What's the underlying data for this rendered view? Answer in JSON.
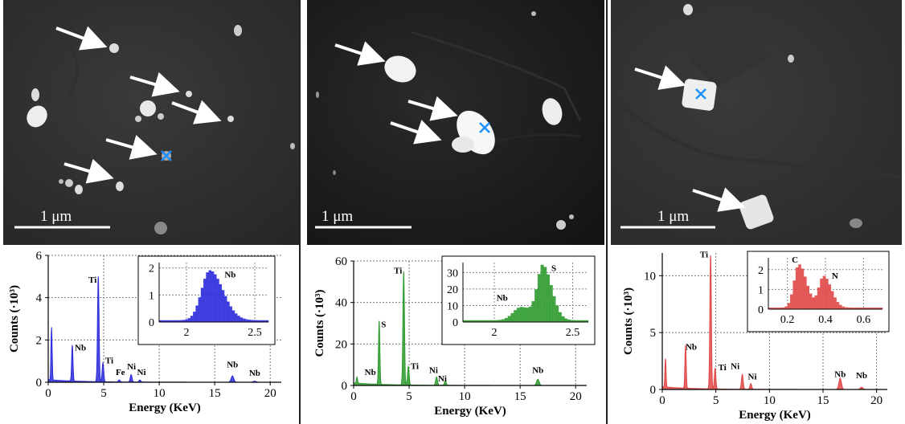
{
  "figure": {
    "scale_bar_label": "1 μm",
    "panels": [
      {
        "id": "left",
        "chart_data": {
          "type": "line",
          "title": "",
          "xlabel": "Energy (KeV)",
          "ylabel": "Counts (·10³)",
          "xlim": [
            0,
            21
          ],
          "ylim": [
            0,
            6
          ],
          "x_ticks": [
            0,
            5,
            10,
            15,
            20
          ],
          "y_ticks": [
            0,
            2,
            4,
            6
          ],
          "color": "#2b2bdc",
          "peaks": [
            {
              "x": 0.3,
              "y": 2.5
            },
            {
              "x": 2.17,
              "y": 1.7
            },
            {
              "x": 4.51,
              "y": 5.0
            },
            {
              "x": 4.93,
              "y": 0.9
            },
            {
              "x": 6.4,
              "y": 0.1
            },
            {
              "x": 7.47,
              "y": 0.35
            },
            {
              "x": 8.26,
              "y": 0.1
            },
            {
              "x": 16.6,
              "y": 0.3
            },
            {
              "x": 18.6,
              "y": 0.05
            }
          ],
          "annotations": [
            {
              "text": "Ti",
              "x": 4.0,
              "y": 4.7
            },
            {
              "text": "Nb",
              "x": 2.9,
              "y": 1.5
            },
            {
              "text": "Ti",
              "x": 5.5,
              "y": 0.9
            },
            {
              "text": "Fe",
              "x": 6.5,
              "y": 0.35
            },
            {
              "text": "Ni",
              "x": 7.5,
              "y": 0.6
            },
            {
              "text": "Ni",
              "x": 8.4,
              "y": 0.35
            },
            {
              "text": "Nb",
              "x": 16.6,
              "y": 0.7
            },
            {
              "text": "Nb",
              "x": 18.6,
              "y": 0.3
            }
          ],
          "inset": {
            "xlim": [
              1.8,
              2.6
            ],
            "ylim": [
              0,
              2.2
            ],
            "x_ticks": [
              2.0,
              2.5
            ],
            "y_ticks": [
              0,
              1,
              2
            ],
            "peaks": [
              {
                "x": 2.17,
                "y": 1.85,
                "w": 0.12
              }
            ],
            "labels": [
              {
                "text": "Nb",
                "x": 2.32,
                "y": 1.65
              }
            ]
          }
        }
      },
      {
        "id": "middle",
        "chart_data": {
          "type": "line",
          "title": "",
          "xlabel": "Energy (KeV)",
          "ylabel": "Counts (·10³)",
          "xlim": [
            0,
            21
          ],
          "ylim": [
            0,
            60
          ],
          "x_ticks": [
            0,
            5,
            10,
            15,
            20
          ],
          "y_ticks": [
            0,
            20,
            40,
            60
          ],
          "color": "#2e9a2e",
          "peaks": [
            {
              "x": 0.3,
              "y": 3
            },
            {
              "x": 2.3,
              "y": 31
            },
            {
              "x": 4.51,
              "y": 55
            },
            {
              "x": 4.93,
              "y": 9
            },
            {
              "x": 7.47,
              "y": 4
            },
            {
              "x": 8.26,
              "y": 2
            },
            {
              "x": 16.6,
              "y": 3
            }
          ],
          "annotations": [
            {
              "text": "Ti",
              "x": 4.0,
              "y": 54
            },
            {
              "text": "S",
              "x": 2.7,
              "y": 28
            },
            {
              "text": "Nb",
              "x": 1.5,
              "y": 5
            },
            {
              "text": "Ti",
              "x": 5.5,
              "y": 8
            },
            {
              "text": "Ni",
              "x": 7.2,
              "y": 6
            },
            {
              "text": "Ni",
              "x": 8.0,
              "y": 2
            },
            {
              "text": "Nb",
              "x": 16.6,
              "y": 6
            }
          ],
          "inset": {
            "xlim": [
              1.8,
              2.6
            ],
            "ylim": [
              0,
              36
            ],
            "x_ticks": [
              2.0,
              2.5
            ],
            "y_ticks": [
              0,
              10,
              20,
              30
            ],
            "peaks": [
              {
                "x": 2.17,
                "y": 8,
                "w": 0.1
              },
              {
                "x": 2.31,
                "y": 32,
                "w": 0.07
              }
            ],
            "labels": [
              {
                "text": "Nb",
                "x": 2.05,
                "y": 13
              },
              {
                "text": "S",
                "x": 2.38,
                "y": 31
              }
            ]
          }
        }
      },
      {
        "id": "right",
        "chart_data": {
          "type": "line",
          "title": "",
          "xlabel": "Energy (KeV)",
          "ylabel": "Counts (·10³)",
          "xlim": [
            0,
            21
          ],
          "ylim": [
            0,
            12
          ],
          "x_ticks": [
            0,
            5,
            10,
            15,
            20
          ],
          "y_ticks": [
            0,
            5,
            10
          ],
          "color": "#e04848",
          "peaks": [
            {
              "x": 0.3,
              "y": 2.5
            },
            {
              "x": 2.17,
              "y": 3.8
            },
            {
              "x": 4.51,
              "y": 11.8
            },
            {
              "x": 4.93,
              "y": 1.8
            },
            {
              "x": 7.47,
              "y": 1.3
            },
            {
              "x": 8.26,
              "y": 0.5
            },
            {
              "x": 16.6,
              "y": 1.0
            },
            {
              "x": 18.6,
              "y": 0.2
            }
          ],
          "annotations": [
            {
              "text": "Ti",
              "x": 3.9,
              "y": 11.6
            },
            {
              "text": "Nb",
              "x": 2.7,
              "y": 3.5
            },
            {
              "text": "Ti",
              "x": 5.6,
              "y": 1.7
            },
            {
              "text": "Ni",
              "x": 6.8,
              "y": 1.8
            },
            {
              "text": "Ni",
              "x": 8.4,
              "y": 0.9
            },
            {
              "text": "Nb",
              "x": 16.6,
              "y": 1.1
            },
            {
              "text": "Nb",
              "x": 18.6,
              "y": 1.0
            }
          ],
          "inset": {
            "xlim": [
              0.1,
              0.7
            ],
            "ylim": [
              0,
              2.6
            ],
            "x_ticks": [
              0.2,
              0.4,
              0.6
            ],
            "y_ticks": [
              0,
              1,
              2
            ],
            "peaks": [
              {
                "x": 0.26,
                "y": 2.2,
                "w": 0.05
              },
              {
                "x": 0.39,
                "y": 1.6,
                "w": 0.05
              }
            ],
            "labels": [
              {
                "text": "C",
                "x": 0.24,
                "y": 2.35
              },
              {
                "text": "N",
                "x": 0.45,
                "y": 1.55
              }
            ]
          }
        }
      }
    ]
  }
}
